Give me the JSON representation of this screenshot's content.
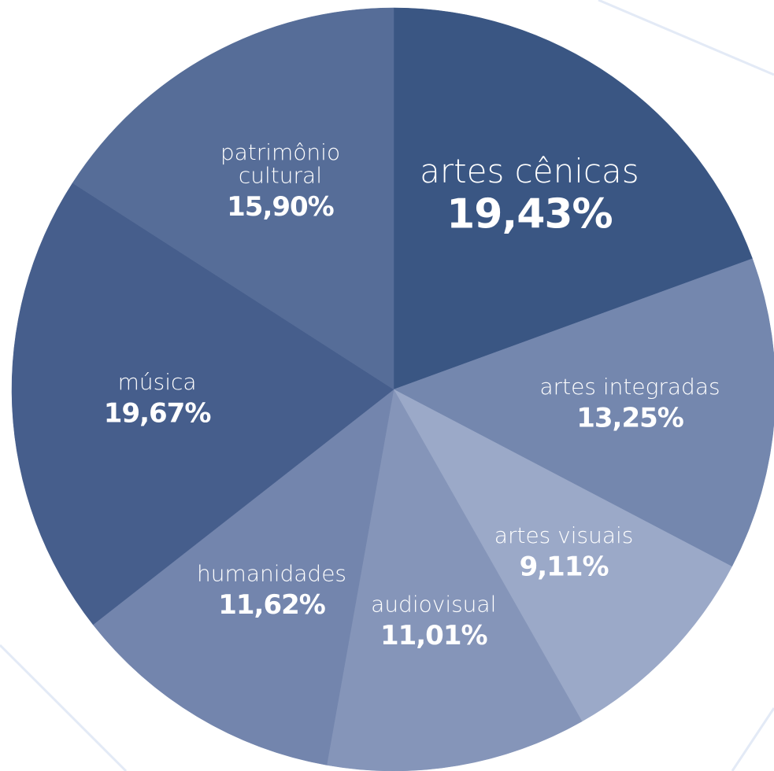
{
  "chart_data": {
    "type": "pie",
    "categories": [
      "artes cênicas",
      "artes integradas",
      "artes visuais",
      "audiovisual",
      "humanidades",
      "música",
      "patrimônio cultural"
    ],
    "values": [
      19.43,
      13.25,
      9.11,
      11.01,
      11.62,
      19.67,
      15.9
    ],
    "value_labels": [
      "19,43%",
      "13,25%",
      "9,11%",
      "11,01%",
      "11,62%",
      "19,67%",
      "15,90%"
    ],
    "colors": [
      "#3a5683",
      "#7487ae",
      "#9ba9c8",
      "#8595b9",
      "#7385ad",
      "#465e8c",
      "#566d98"
    ]
  }
}
